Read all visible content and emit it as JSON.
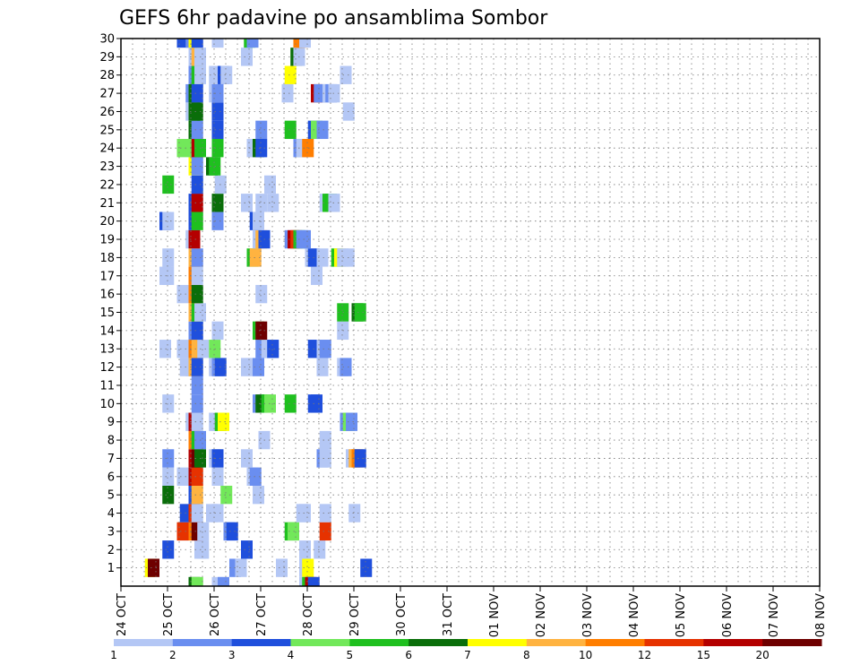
{
  "chart_data": {
    "type": "heatmap",
    "title": "GEFS 6hr padavine po ansamblima Sombor",
    "xlabel": "",
    "ylabel": "",
    "x_ticks": [
      "24 OCT",
      "25 OCT",
      "26 OCT",
      "27 OCT",
      "28 OCT",
      "29 OCT",
      "30 OCT",
      "31 OCT",
      "01 NOV",
      "02 NOV",
      "03 NOV",
      "04 NOV",
      "05 NOV",
      "06 NOV",
      "07 NOV",
      "08 NOV"
    ],
    "xlim": [
      0,
      15
    ],
    "y_ticks": [
      1,
      2,
      3,
      4,
      5,
      6,
      7,
      8,
      9,
      10,
      11,
      12,
      13,
      14,
      15,
      16,
      17,
      18,
      19,
      20,
      21,
      22,
      23,
      24,
      25,
      26,
      27,
      28,
      29,
      30
    ],
    "ylim": [
      0,
      30
    ],
    "grid": true,
    "time_step_days": 0.25,
    "legend": {
      "position": "bottom",
      "levels": [
        1,
        2,
        3,
        4,
        5,
        6,
        7,
        8,
        10,
        12,
        15,
        20
      ],
      "colors": [
        "#b4c7f5",
        "#6a8ef0",
        "#1f4fdc",
        "#72e85a",
        "#1fc01f",
        "#0a6e0a",
        "#ffff00",
        "#ffb340",
        "#ff7e00",
        "#e63200",
        "#b40000",
        "#6e0000"
      ]
    },
    "points": [
      [
        2.75,
        1,
        7
      ],
      [
        3.0,
        1,
        20
      ],
      [
        10.0,
        1,
        2
      ],
      [
        10.5,
        1,
        1
      ],
      [
        14.0,
        1,
        1
      ],
      [
        16.0,
        1,
        1
      ],
      [
        16.25,
        1,
        7
      ],
      [
        21.25,
        1,
        3
      ],
      [
        4.25,
        2,
        3
      ],
      [
        7.0,
        2,
        1
      ],
      [
        7.25,
        2,
        1
      ],
      [
        11.0,
        2,
        3
      ],
      [
        16.0,
        2,
        1
      ],
      [
        17.25,
        2,
        1
      ],
      [
        5.5,
        3,
        12
      ],
      [
        6.5,
        3,
        10
      ],
      [
        6.75,
        3,
        20
      ],
      [
        7.25,
        3,
        1
      ],
      [
        9.5,
        3,
        2
      ],
      [
        9.75,
        3,
        3
      ],
      [
        14.75,
        3,
        5
      ],
      [
        15.0,
        3,
        4
      ],
      [
        17.75,
        3,
        12
      ],
      [
        5.75,
        4,
        3
      ],
      [
        6.5,
        4,
        12
      ],
      [
        6.75,
        4,
        1
      ],
      [
        8.0,
        4,
        1
      ],
      [
        8.5,
        4,
        1
      ],
      [
        15.75,
        4,
        1
      ],
      [
        16.0,
        4,
        1
      ],
      [
        17.75,
        4,
        1
      ],
      [
        20.25,
        4,
        1
      ],
      [
        4.25,
        5,
        6
      ],
      [
        6.5,
        5,
        3
      ],
      [
        6.75,
        5,
        8
      ],
      [
        9.25,
        5,
        4
      ],
      [
        12.0,
        5,
        1
      ],
      [
        4.25,
        6,
        1
      ],
      [
        5.5,
        6,
        1
      ],
      [
        6.5,
        6,
        15
      ],
      [
        6.75,
        6,
        12
      ],
      [
        8.5,
        6,
        1
      ],
      [
        11.5,
        6,
        1
      ],
      [
        11.75,
        6,
        2
      ],
      [
        4.25,
        7,
        2
      ],
      [
        6.5,
        7,
        15
      ],
      [
        6.75,
        7,
        20
      ],
      [
        7.0,
        7,
        6
      ],
      [
        8.25,
        7,
        1
      ],
      [
        8.5,
        7,
        3
      ],
      [
        11.0,
        7,
        1
      ],
      [
        17.5,
        7,
        2
      ],
      [
        17.75,
        7,
        1
      ],
      [
        20.0,
        7,
        1
      ],
      [
        20.25,
        7,
        8
      ],
      [
        20.5,
        7,
        10
      ],
      [
        20.75,
        7,
        3
      ],
      [
        6.5,
        8,
        10
      ],
      [
        6.75,
        8,
        5
      ],
      [
        7.0,
        8,
        2
      ],
      [
        12.5,
        8,
        1
      ],
      [
        17.75,
        8,
        1
      ],
      [
        6.25,
        9,
        1
      ],
      [
        6.5,
        9,
        15
      ],
      [
        6.75,
        9,
        1
      ],
      [
        8.25,
        9,
        1
      ],
      [
        8.5,
        9,
        1
      ],
      [
        8.75,
        9,
        5
      ],
      [
        9.0,
        9,
        7
      ],
      [
        19.5,
        9,
        2
      ],
      [
        19.75,
        9,
        4
      ],
      [
        20.0,
        9,
        2
      ],
      [
        4.25,
        10,
        1
      ],
      [
        6.75,
        10,
        2
      ],
      [
        12.0,
        10,
        2
      ],
      [
        12.25,
        10,
        6
      ],
      [
        12.75,
        10,
        5
      ],
      [
        13.0,
        10,
        4
      ],
      [
        14.75,
        10,
        5
      ],
      [
        16.75,
        10,
        3
      ],
      [
        17.0,
        10,
        3
      ],
      [
        6.75,
        11,
        2
      ],
      [
        5.75,
        12,
        1
      ],
      [
        6.25,
        12,
        1
      ],
      [
        6.5,
        12,
        8
      ],
      [
        6.75,
        12,
        3
      ],
      [
        8.25,
        12,
        1
      ],
      [
        8.5,
        12,
        2
      ],
      [
        8.75,
        12,
        3
      ],
      [
        11.0,
        12,
        1
      ],
      [
        12.0,
        12,
        2
      ],
      [
        17.5,
        12,
        1
      ],
      [
        19.25,
        12,
        1
      ],
      [
        19.5,
        12,
        2
      ],
      [
        4.0,
        13,
        1
      ],
      [
        5.5,
        13,
        1
      ],
      [
        6.5,
        13,
        10
      ],
      [
        6.75,
        13,
        8
      ],
      [
        7.25,
        13,
        1
      ],
      [
        8.25,
        13,
        4
      ],
      [
        12.25,
        13,
        2
      ],
      [
        12.5,
        13,
        2
      ],
      [
        12.75,
        13,
        1
      ],
      [
        13.25,
        13,
        3
      ],
      [
        16.75,
        13,
        3
      ],
      [
        17.5,
        13,
        1
      ],
      [
        17.75,
        13,
        2
      ],
      [
        6.5,
        14,
        2
      ],
      [
        6.75,
        14,
        3
      ],
      [
        8.5,
        14,
        1
      ],
      [
        12.0,
        14,
        5
      ],
      [
        12.25,
        14,
        20
      ],
      [
        19.25,
        14,
        1
      ],
      [
        6.5,
        15,
        8
      ],
      [
        6.75,
        15,
        5
      ],
      [
        7.0,
        15,
        1
      ],
      [
        19.25,
        15,
        5
      ],
      [
        20.5,
        15,
        6
      ],
      [
        20.75,
        15,
        5
      ],
      [
        5.5,
        16,
        1
      ],
      [
        6.5,
        16,
        10
      ],
      [
        6.75,
        16,
        6
      ],
      [
        12.25,
        16,
        1
      ],
      [
        4.0,
        17,
        1
      ],
      [
        4.25,
        17,
        1
      ],
      [
        6.5,
        17,
        10
      ],
      [
        6.75,
        17,
        1
      ],
      [
        17.0,
        17,
        1
      ],
      [
        4.25,
        18,
        1
      ],
      [
        6.5,
        18,
        8
      ],
      [
        6.75,
        18,
        2
      ],
      [
        11.5,
        18,
        5
      ],
      [
        11.75,
        18,
        8
      ],
      [
        16.5,
        18,
        1
      ],
      [
        16.75,
        18,
        3
      ],
      [
        17.5,
        18,
        1
      ],
      [
        18.75,
        18,
        5
      ],
      [
        19.0,
        18,
        7
      ],
      [
        19.25,
        18,
        1
      ],
      [
        19.75,
        18,
        1
      ],
      [
        6.25,
        19,
        1
      ],
      [
        6.5,
        19,
        15
      ],
      [
        12.0,
        19,
        1
      ],
      [
        12.25,
        19,
        8
      ],
      [
        12.5,
        19,
        3
      ],
      [
        14.75,
        19,
        2
      ],
      [
        15.0,
        19,
        15
      ],
      [
        15.25,
        19,
        12
      ],
      [
        15.5,
        19,
        5
      ],
      [
        15.75,
        19,
        2
      ],
      [
        16.0,
        19,
        2
      ],
      [
        4.0,
        20,
        3
      ],
      [
        4.25,
        20,
        1
      ],
      [
        6.5,
        20,
        3
      ],
      [
        6.75,
        20,
        5
      ],
      [
        8.5,
        20,
        2
      ],
      [
        11.75,
        20,
        3
      ],
      [
        12.0,
        20,
        1
      ],
      [
        6.5,
        21,
        3
      ],
      [
        6.75,
        21,
        15
      ],
      [
        8.5,
        21,
        6
      ],
      [
        11.0,
        21,
        1
      ],
      [
        12.25,
        21,
        1
      ],
      [
        13.25,
        21,
        1
      ],
      [
        17.75,
        21,
        1
      ],
      [
        18.0,
        21,
        5
      ],
      [
        18.25,
        21,
        5
      ],
      [
        18.5,
        21,
        1
      ],
      [
        4.25,
        22,
        5
      ],
      [
        6.75,
        22,
        3
      ],
      [
        8.75,
        22,
        1
      ],
      [
        13.0,
        22,
        1
      ],
      [
        6.5,
        23,
        7
      ],
      [
        6.75,
        23,
        2
      ],
      [
        8.0,
        23,
        6
      ],
      [
        8.25,
        23,
        5
      ],
      [
        5.5,
        24,
        4
      ],
      [
        6.5,
        24,
        4
      ],
      [
        6.75,
        24,
        15
      ],
      [
        7.0,
        24,
        5
      ],
      [
        8.5,
        24,
        5
      ],
      [
        11.5,
        24,
        1
      ],
      [
        11.75,
        24,
        1
      ],
      [
        12.0,
        24,
        6
      ],
      [
        12.25,
        24,
        3
      ],
      [
        15.5,
        24,
        2
      ],
      [
        15.75,
        24,
        1
      ],
      [
        16.25,
        24,
        10
      ],
      [
        6.5,
        25,
        6
      ],
      [
        6.75,
        25,
        2
      ],
      [
        8.5,
        25,
        3
      ],
      [
        12.25,
        25,
        2
      ],
      [
        14.75,
        25,
        5
      ],
      [
        16.75,
        25,
        3
      ],
      [
        17.0,
        25,
        4
      ],
      [
        17.5,
        25,
        2
      ],
      [
        6.25,
        26,
        1
      ],
      [
        6.5,
        26,
        6
      ],
      [
        6.75,
        26,
        6
      ],
      [
        8.5,
        26,
        3
      ],
      [
        19.75,
        26,
        1
      ],
      [
        6.25,
        27,
        2
      ],
      [
        6.5,
        27,
        6
      ],
      [
        6.75,
        27,
        3
      ],
      [
        8.25,
        27,
        1
      ],
      [
        8.5,
        27,
        2
      ],
      [
        14.5,
        27,
        1
      ],
      [
        17.0,
        27,
        15
      ],
      [
        17.25,
        27,
        2
      ],
      [
        18.0,
        27,
        1
      ],
      [
        18.25,
        27,
        2
      ],
      [
        18.5,
        27,
        1
      ],
      [
        6.5,
        28,
        2
      ],
      [
        6.75,
        28,
        5
      ],
      [
        7.0,
        28,
        1
      ],
      [
        8.25,
        28,
        1
      ],
      [
        9.0,
        28,
        3
      ],
      [
        9.25,
        28,
        1
      ],
      [
        14.75,
        28,
        7
      ],
      [
        19.5,
        28,
        1
      ],
      [
        6.5,
        29,
        1
      ],
      [
        6.75,
        29,
        8
      ],
      [
        7.0,
        29,
        1
      ],
      [
        11.0,
        29,
        1
      ],
      [
        15.25,
        29,
        6
      ],
      [
        15.5,
        29,
        1
      ],
      [
        5.5,
        30,
        3
      ],
      [
        6.25,
        30,
        2
      ],
      [
        6.5,
        30,
        7
      ],
      [
        6.75,
        30,
        3
      ],
      [
        8.5,
        30,
        1
      ],
      [
        11.25,
        30,
        5
      ],
      [
        11.5,
        30,
        2
      ],
      [
        15.5,
        30,
        10
      ],
      [
        15.75,
        30,
        10
      ],
      [
        16.0,
        30,
        1
      ],
      [
        6.5,
        0,
        6
      ],
      [
        6.75,
        0,
        4
      ],
      [
        8.5,
        0,
        1
      ],
      [
        9.0,
        0,
        2
      ],
      [
        16.0,
        0,
        1
      ],
      [
        16.25,
        0,
        5
      ],
      [
        16.5,
        0,
        15
      ],
      [
        16.75,
        0,
        3
      ]
    ]
  }
}
